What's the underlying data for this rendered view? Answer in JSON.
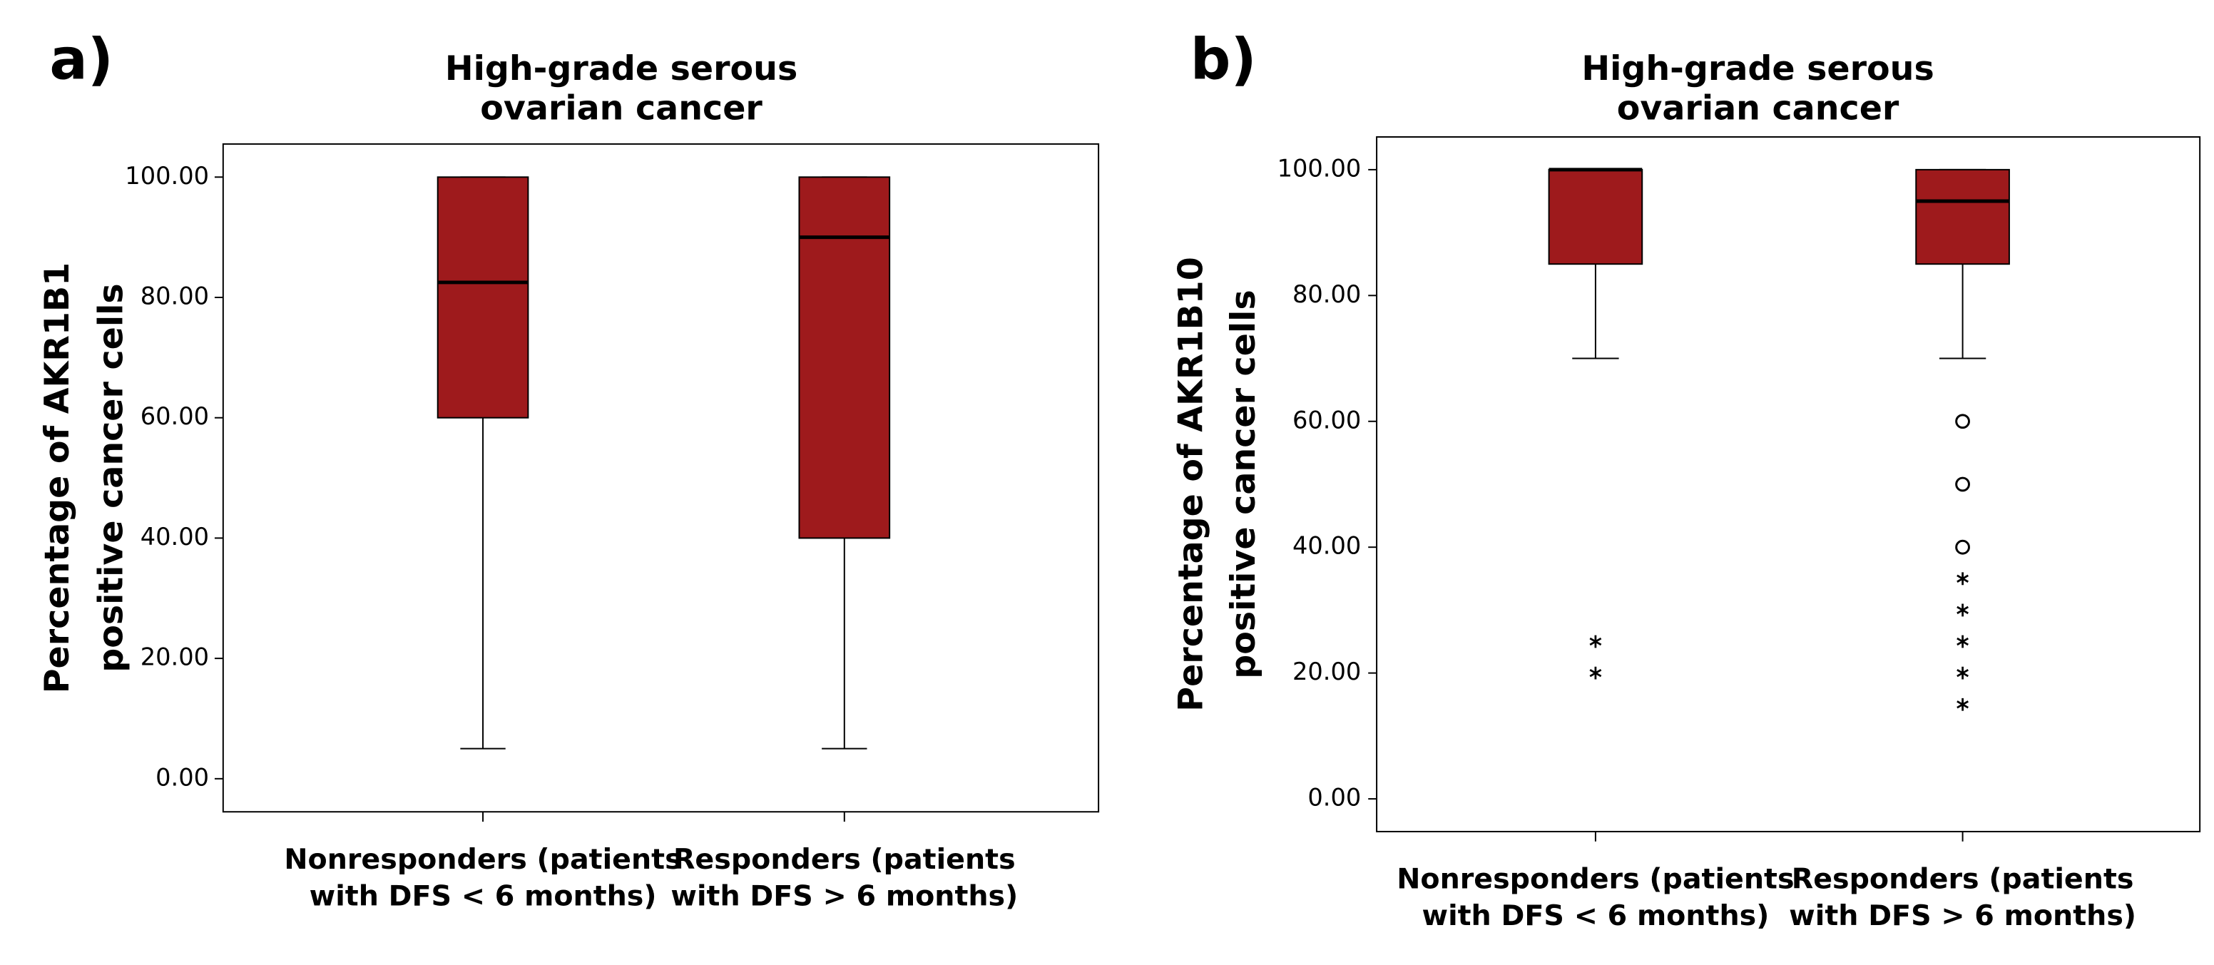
{
  "chart_data": [
    {
      "type": "box",
      "panel": "a)",
      "title": [
        "High-grade serous",
        "ovarian cancer"
      ],
      "ylabel": [
        "Percentage of AKR1B1",
        "positive cancer cells"
      ],
      "categories": [
        [
          "Nonresponders (patients",
          "with DFS < 6 months)"
        ],
        [
          "Responders (patients",
          "with DFS > 6 months)"
        ]
      ],
      "color": "#9e1a1c",
      "ylim": [
        -5.5,
        105.5
      ],
      "yticks": [
        {
          "value": 0,
          "label": "0.00"
        },
        {
          "value": 20,
          "label": "20.00"
        },
        {
          "value": 40,
          "label": "40.00"
        },
        {
          "value": 60,
          "label": "60.00"
        },
        {
          "value": 80,
          "label": "80.00"
        },
        {
          "value": 100,
          "label": "100.00"
        }
      ],
      "boxes": [
        {
          "min": 5,
          "q1": 60,
          "median": 82.5,
          "q3": 100,
          "max": 100,
          "outliers": [],
          "extremes": []
        },
        {
          "min": 5,
          "q1": 40,
          "median": 90,
          "q3": 100,
          "max": 100,
          "outliers": [],
          "extremes": []
        }
      ]
    },
    {
      "type": "box",
      "panel": "b)",
      "title": [
        "High-grade serous",
        "ovarian cancer"
      ],
      "ylabel": [
        "Percentage of AKR1B10",
        "positive cancer cells"
      ],
      "categories": [
        [
          "Nonresponders (patients",
          "with DFS < 6 months)"
        ],
        [
          "Responders (patients",
          "with DFS > 6 months)"
        ]
      ],
      "color": "#9e1a1c",
      "ylim": [
        -5.2,
        105.2
      ],
      "yticks": [
        {
          "value": 0,
          "label": "0.00"
        },
        {
          "value": 20,
          "label": "20.00"
        },
        {
          "value": 40,
          "label": "40.00"
        },
        {
          "value": 60,
          "label": "60.00"
        },
        {
          "value": 80,
          "label": "80.00"
        },
        {
          "value": 100,
          "label": "100.00"
        }
      ],
      "boxes": [
        {
          "min": 70,
          "q1": 85,
          "median": 100,
          "q3": 100,
          "max": 100,
          "outliers": [],
          "extremes": [
            25,
            20
          ]
        },
        {
          "min": 70,
          "q1": 85,
          "median": 95,
          "q3": 100,
          "max": 100,
          "outliers": [
            60,
            50,
            40
          ],
          "extremes": [
            35,
            30,
            25,
            20,
            15
          ]
        }
      ]
    }
  ]
}
